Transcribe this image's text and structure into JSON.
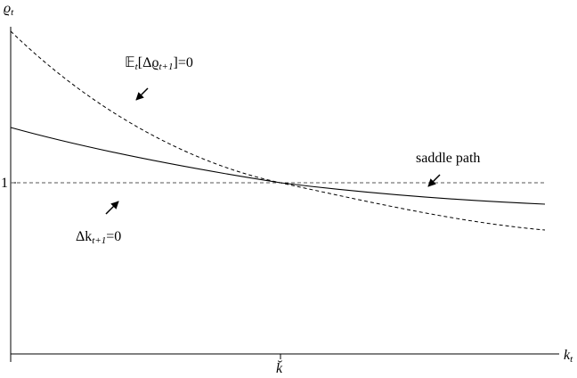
{
  "axes": {
    "y_label": {
      "symbol": "ϱ",
      "subscript": "t"
    },
    "x_label": {
      "symbol": "k",
      "subscript": "t"
    },
    "y_tick": "1",
    "x_tick": "k̆"
  },
  "annotations": {
    "expectation": {
      "operator": "𝔼",
      "operator_subscript": "t",
      "middle": "[Δϱ",
      "middle_subscript": "t+1",
      "rest": "]=0"
    },
    "saddle_path": "saddle path",
    "capital": {
      "symbol": "Δk",
      "subscript": "t+1",
      "rest": "=0"
    }
  }
}
